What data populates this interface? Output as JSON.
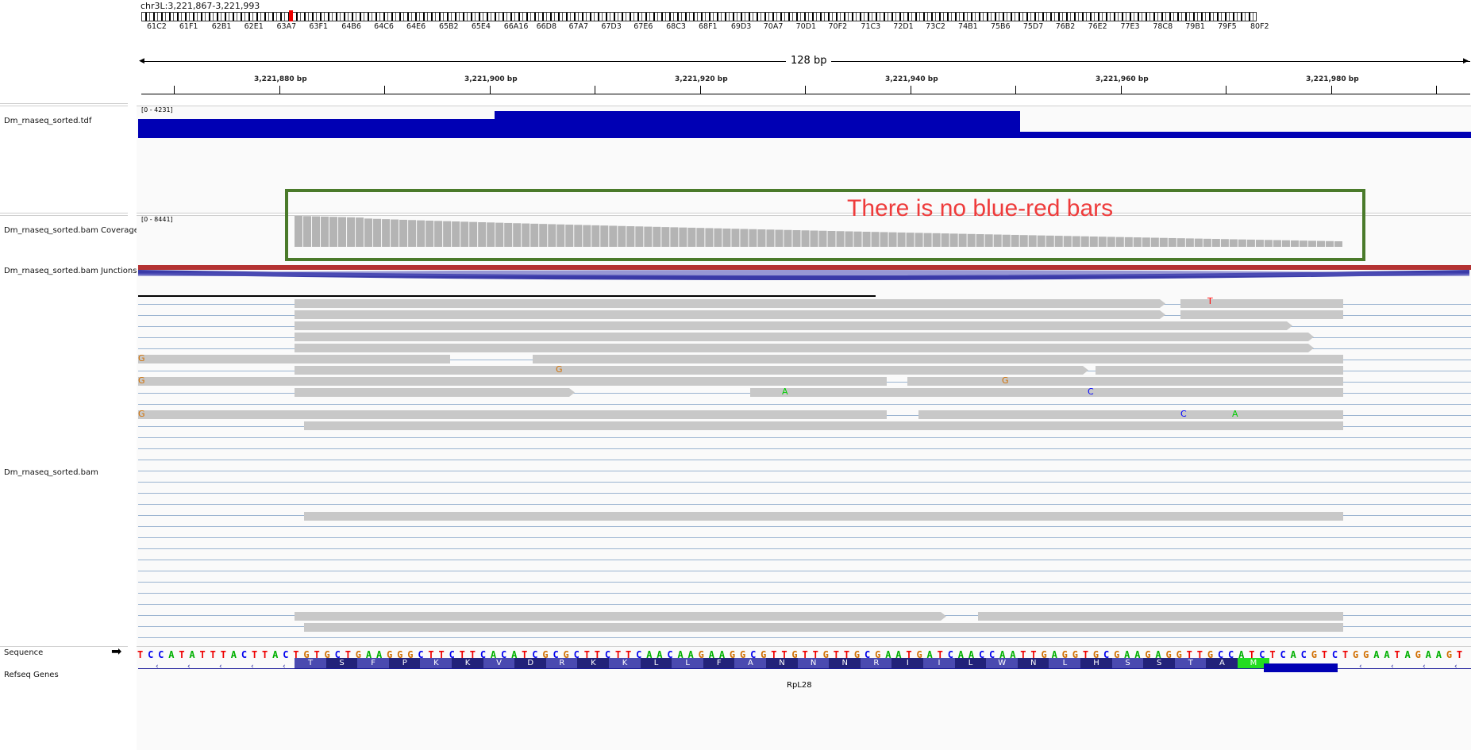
{
  "locus": "chr3L:3,221,867-3,221,993",
  "cytobands": [
    "61C2",
    "61F1",
    "62B1",
    "62E1",
    "63A7",
    "63F1",
    "64B6",
    "64C6",
    "64E6",
    "65B2",
    "65E4",
    "66A16",
    "66D8",
    "67A7",
    "67D3",
    "67E6",
    "68C3",
    "68F1",
    "69D3",
    "70A7",
    "70D1",
    "70F2",
    "71C3",
    "72D1",
    "73C2",
    "74B1",
    "75B6",
    "75D7",
    "76B2",
    "76E2",
    "77E3",
    "78C8",
    "79B1",
    "79F5",
    "80F2"
  ],
  "ruler": {
    "span_label": "128 bp",
    "ticks": [
      "3,221,880 bp",
      "3,221,900 bp",
      "3,221,920 bp",
      "3,221,940 bp",
      "3,221,960 bp",
      "3,221,980 bp"
    ]
  },
  "tracks": {
    "tdf": {
      "name": "Dm_rnaseq_sorted.tdf",
      "range": "[0 - 4231]"
    },
    "coverage": {
      "name": "Dm_rnaseq_sorted.bam Coverage",
      "range": "[0 - 8441]"
    },
    "junctions": {
      "name": "Dm_rnaseq_sorted.bam Junctions"
    },
    "alignments": {
      "name": "Dm_rnaseq_sorted.bam"
    },
    "sequence": {
      "name": "Sequence",
      "arrow": "➡"
    },
    "refseq": {
      "name": "Refseq Genes",
      "gene": "RpL28"
    }
  },
  "annotation": {
    "text": "There is no blue-red bars",
    "text_color": "#ee3b3b",
    "box_color": "#4a7a2a"
  },
  "sequence": "TCCATATTTACTTACTGTGCTGAAGGGCTTCTTCACATCGCGCTTCTTCAACAAGAAGGCGTTGTTGTTGCGAATGATCAACCAATTGAGGTGCGAAGAGGTTGCCATCTCACGTCTGGAATAGAAGT",
  "amino_acids": [
    "T",
    "S",
    "F",
    "P",
    "K",
    "K",
    "V",
    "D",
    "R",
    "K",
    "K",
    "L",
    "L",
    "F",
    "A",
    "N",
    "N",
    "N",
    "R",
    "I",
    "I",
    "L",
    "W",
    "N",
    "L",
    "H",
    "S",
    "S",
    "T",
    "A",
    "M"
  ],
  "mismatch_labels": [
    "G",
    "T",
    "G",
    "G",
    "G",
    "A",
    "C",
    "G",
    "C",
    "A"
  ],
  "colors": {
    "tdf_bar": "#0000b4",
    "coverage_bar": "#b4b4b4",
    "read": "#c8c8c8",
    "junction_red": "#b43232",
    "junction_blue": "#3232a0",
    "start_codon": "#22dd22"
  }
}
